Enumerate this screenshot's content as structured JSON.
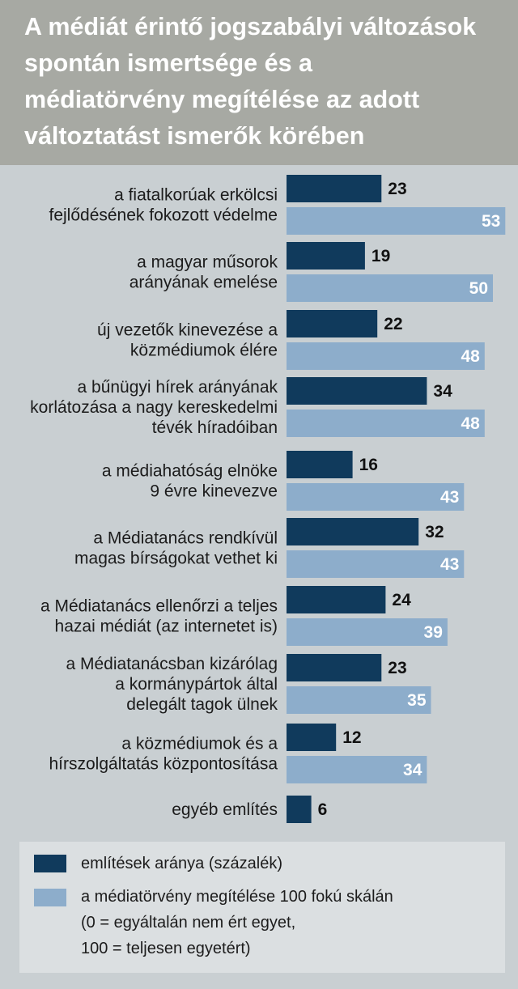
{
  "title_lines": [
    "A médiát érintő jogszabályi változások",
    "spontán ismertsége és a",
    "médiatörvény megítélése az adott",
    "változtatást ismerők körében"
  ],
  "colors": {
    "series1": "#103a5c",
    "series2": "#8dadcb",
    "header_bg": "#a7a9a3",
    "page_bg": "#c9cfd2"
  },
  "legend": {
    "item1": "említések aránya (százalék)",
    "item2_lines": [
      "a médiatörvény megítélése 100 fokú skálán",
      "(0 = egyáltalán nem ért egyet,",
      "100 = teljesen egyetért)"
    ]
  },
  "chart_data": {
    "type": "bar",
    "orientation": "horizontal",
    "categories": [
      [
        "a fiatalkorúak erkölcsi",
        "fejlődésének fokozott védelme"
      ],
      [
        "a magyar műsorok",
        "arányának emelése"
      ],
      [
        "új vezetők kinevezése a",
        "közmédiumok élére"
      ],
      [
        "a bűnügyi hírek arányának",
        "korlátozása a nagy kereskedelmi",
        "tévék híradóiban"
      ],
      [
        "a médiahatóság elnöke",
        "9 évre kinevezve"
      ],
      [
        "a Médiatanács rendkívül",
        "magas bírságokat vethet ki"
      ],
      [
        "a Médiatanács ellenőrzi a teljes",
        "hazai médiát (az internetet is)"
      ],
      [
        "a Médiatanácsban kizárólag",
        "a kormánypártok által",
        "delegált tagok ülnek"
      ],
      [
        "a közmédiumok és a",
        "hírszolgáltatás központosítása"
      ],
      [
        "egyéb említés"
      ]
    ],
    "series": [
      {
        "name": "említések aránya (százalék)",
        "values": [
          23,
          19,
          22,
          34,
          16,
          32,
          24,
          23,
          12,
          6
        ]
      },
      {
        "name": "a médiatörvény megítélése 100 fokú skálán",
        "values": [
          53,
          50,
          48,
          48,
          43,
          43,
          39,
          35,
          34,
          null
        ]
      }
    ],
    "legend_position": "bottom"
  }
}
